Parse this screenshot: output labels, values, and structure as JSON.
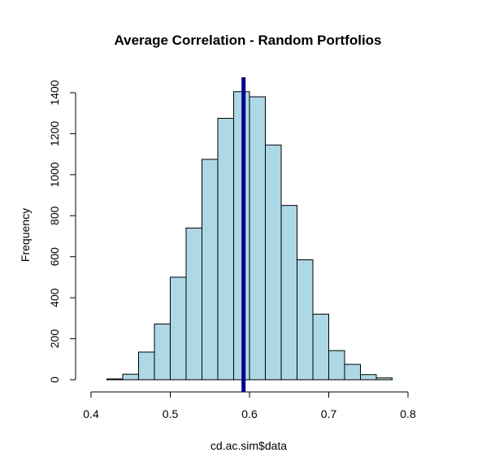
{
  "chart_data": {
    "type": "bar",
    "title": "Average Correlation - Random Portfolios",
    "xlabel": "cd.ac.sim$data",
    "ylabel": "Frequency",
    "xlim": [
      0.4,
      0.8
    ],
    "ylim": [
      0,
      1400
    ],
    "x_ticks": [
      0.4,
      0.5,
      0.6,
      0.7,
      0.8
    ],
    "x_tick_labels": [
      "0.4",
      "0.5",
      "0.6",
      "0.7",
      "0.8"
    ],
    "y_ticks": [
      0,
      200,
      400,
      600,
      800,
      1000,
      1200,
      1400
    ],
    "y_tick_labels": [
      "0",
      "200",
      "400",
      "600",
      "800",
      "1000",
      "1200",
      "1400"
    ],
    "bins": [
      {
        "x0": 0.42,
        "x1": 0.44,
        "count": 4
      },
      {
        "x0": 0.44,
        "x1": 0.46,
        "count": 27
      },
      {
        "x0": 0.46,
        "x1": 0.48,
        "count": 135
      },
      {
        "x0": 0.48,
        "x1": 0.5,
        "count": 272
      },
      {
        "x0": 0.5,
        "x1": 0.52,
        "count": 500
      },
      {
        "x0": 0.52,
        "x1": 0.54,
        "count": 740
      },
      {
        "x0": 0.54,
        "x1": 0.56,
        "count": 1075
      },
      {
        "x0": 0.56,
        "x1": 0.58,
        "count": 1275
      },
      {
        "x0": 0.58,
        "x1": 0.6,
        "count": 1405
      },
      {
        "x0": 0.6,
        "x1": 0.62,
        "count": 1380
      },
      {
        "x0": 0.62,
        "x1": 0.64,
        "count": 1145
      },
      {
        "x0": 0.64,
        "x1": 0.66,
        "count": 850
      },
      {
        "x0": 0.66,
        "x1": 0.68,
        "count": 585
      },
      {
        "x0": 0.68,
        "x1": 0.7,
        "count": 320
      },
      {
        "x0": 0.7,
        "x1": 0.72,
        "count": 142
      },
      {
        "x0": 0.72,
        "x1": 0.74,
        "count": 75
      },
      {
        "x0": 0.74,
        "x1": 0.76,
        "count": 25
      },
      {
        "x0": 0.76,
        "x1": 0.78,
        "count": 9
      }
    ],
    "vertical_line": {
      "x": 0.5925,
      "color": "#00008b"
    },
    "bar_fill": "#add8e6",
    "bar_stroke": "#000000",
    "grid": false,
    "legend": "none"
  }
}
